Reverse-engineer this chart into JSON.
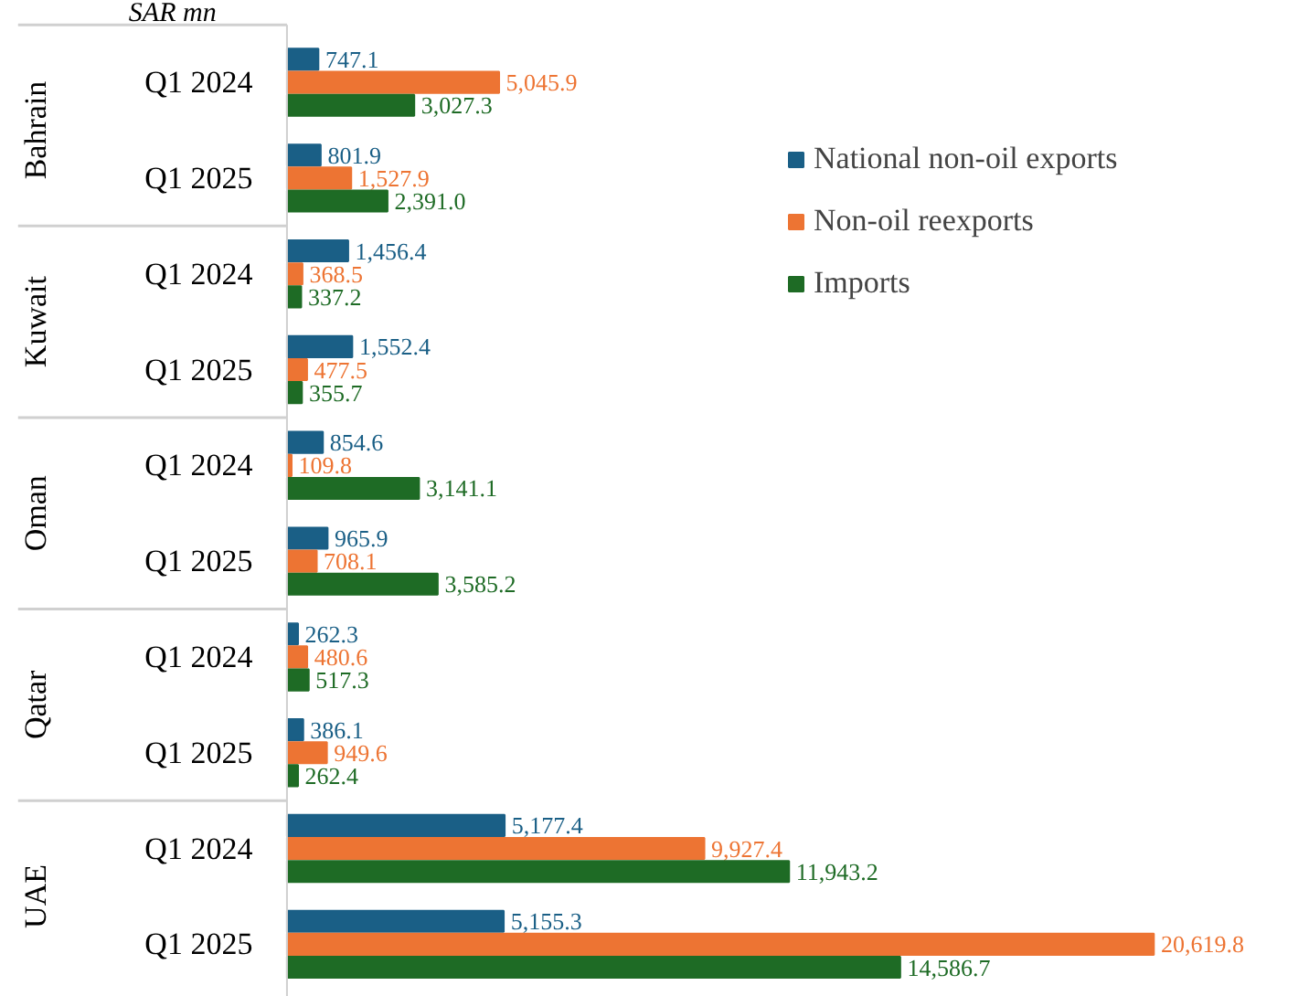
{
  "chart_data": {
    "type": "bar",
    "orientation": "horizontal",
    "ylabel": "SAR mn",
    "categories": [
      "Q1 2024",
      "Q1 2025",
      "Q1 2024",
      "Q1 2025",
      "Q1 2024",
      "Q1 2025",
      "Q1 2024",
      "Q1 2025",
      "Q1 2024",
      "Q1 2025"
    ],
    "annotations": [
      "Bahrain",
      "Kuwait",
      "Oman",
      "Qatar",
      "UAE"
    ],
    "series": [
      {
        "name": "National non-oil exports",
        "color": "#1a5f86",
        "values": [
          747.1,
          801.9,
          1456.4,
          1552.4,
          854.6,
          965.9,
          262.3,
          386.1,
          5177.4,
          5155.3
        ],
        "value_labels": [
          "747.1",
          "801.9",
          "1,456.4",
          "1,552.4",
          "854.6",
          "965.9",
          "262.3",
          "386.1",
          "5,177.4",
          "5,155.3"
        ]
      },
      {
        "name": "Non-oil reexports",
        "color": "#ed7433",
        "values": [
          5045.9,
          1527.9,
          368.5,
          477.5,
          109.8,
          708.1,
          480.6,
          949.6,
          9927.4,
          20619.8
        ],
        "value_labels": [
          "5,045.9",
          "1,527.9",
          "368.5",
          "477.5",
          "109.8",
          "708.1",
          "480.6",
          "949.6",
          "9,927.4",
          "20,619.8"
        ]
      },
      {
        "name": "Imports",
        "color": "#1e6b25",
        "values": [
          3027.3,
          2391.0,
          337.2,
          355.7,
          3141.1,
          3585.2,
          517.3,
          262.4,
          11943.2,
          14586.7
        ],
        "value_labels": [
          "3,027.3",
          "2,391.0",
          "337.2",
          "355.7",
          "3,141.1",
          "3,585.2",
          "517.3",
          "262.4",
          "11,943.2",
          "14,586.7"
        ]
      }
    ],
    "legend": "right",
    "grid": false
  }
}
